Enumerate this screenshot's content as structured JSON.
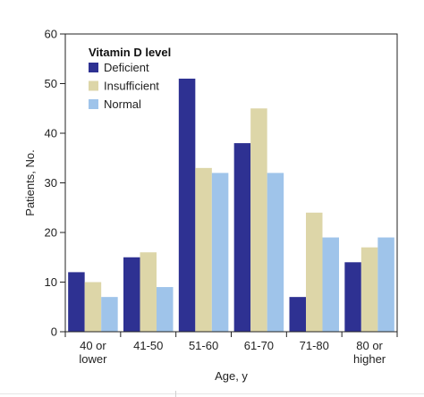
{
  "chart_data": {
    "type": "bar",
    "title": "",
    "xlabel": "Age, y",
    "ylabel": "Patients, No.",
    "ylim": [
      0,
      60
    ],
    "yticks": [
      0,
      10,
      20,
      30,
      40,
      50,
      60
    ],
    "grid": false,
    "legend": {
      "title": "Vitamin D level",
      "placement": "top-left"
    },
    "categories": [
      [
        "40 or",
        "lower"
      ],
      [
        "41-50"
      ],
      [
        "51-60"
      ],
      [
        "61-70"
      ],
      [
        "71-80"
      ],
      [
        "80 or",
        "higher"
      ]
    ],
    "series": [
      {
        "name": "Deficient",
        "color": "#2e3192",
        "values": [
          12,
          15,
          51,
          38,
          7,
          14
        ]
      },
      {
        "name": "Insufficient",
        "color": "#ddd6a8",
        "values": [
          10,
          16,
          33,
          45,
          24,
          17
        ]
      },
      {
        "name": "Normal",
        "color": "#9fc4ea",
        "values": [
          7,
          9,
          32,
          32,
          19,
          19
        ]
      }
    ]
  }
}
